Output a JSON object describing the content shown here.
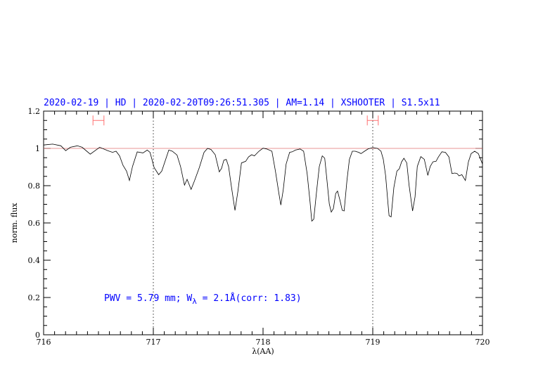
{
  "title": "2020-02-19 | HD | 2020-02-20T09:26:51.305 | AM=1.14 | XSHOOTER | S1.5x11",
  "chart_data": {
    "type": "line",
    "title": "2020-02-19 | HD | 2020-02-20T09:26:51.305 | AM=1.14 | XSHOOTER | S1.5x11",
    "xlabel": "λ(AA)",
    "ylabel": "norm. flux",
    "xlim": [
      716,
      720
    ],
    "ylim": [
      0,
      1.2
    ],
    "xticks": [
      716,
      717,
      718,
      719,
      720
    ],
    "xtick_labels": [
      "716",
      "717",
      "718",
      "719",
      "720"
    ],
    "yticks": [
      0,
      0.2,
      0.4,
      0.6,
      0.8,
      1,
      1.2
    ],
    "ytick_labels": [
      "0",
      "0.2",
      "0.4",
      "0.6",
      "0.8",
      "1",
      "1.2"
    ],
    "grid": false,
    "reference_line": {
      "y": 1,
      "color": "#e07070"
    },
    "vertical_dotted_lines": [
      717,
      719
    ],
    "range_markers": [
      {
        "center": 716.5,
        "halfwidth": 0.05,
        "y": 1.15,
        "color": "#ff7070"
      },
      {
        "center": 719.0,
        "halfwidth": 0.05,
        "y": 1.15,
        "color": "#ff7070"
      }
    ],
    "annotation": {
      "prefix": "PWV = 5.79 mm; W",
      "subscript": "λ",
      "suffix": " = 2.1Å(corr: 1.83)",
      "x": 716.55,
      "y": 0.2,
      "color": "#0000ff"
    },
    "series": [
      {
        "color": "#000000",
        "x": [
          716.0,
          716.03,
          716.083,
          716.158,
          716.201,
          716.244,
          716.308,
          716.351,
          716.425,
          716.511,
          716.585,
          716.628,
          716.66,
          716.692,
          716.724,
          716.756,
          716.782,
          716.81,
          716.853,
          716.906,
          716.944,
          716.97,
          717.008,
          717.049,
          717.077,
          717.141,
          717.173,
          717.216,
          717.248,
          717.284,
          717.308,
          717.344,
          717.376,
          717.419,
          717.462,
          717.494,
          717.526,
          717.564,
          717.601,
          717.622,
          717.643,
          717.665,
          717.686,
          717.713,
          717.744,
          717.771,
          717.803,
          717.842,
          717.867,
          717.896,
          717.921,
          717.963,
          718.0,
          718.034,
          718.081,
          718.113,
          718.146,
          718.162,
          718.184,
          718.21,
          718.242,
          718.267,
          718.295,
          718.338,
          718.37,
          718.402,
          718.428,
          718.444,
          718.462,
          718.487,
          718.513,
          718.54,
          718.562,
          718.583,
          718.604,
          718.622,
          718.641,
          718.662,
          718.679,
          718.701,
          718.722,
          718.739,
          718.765,
          718.787,
          718.814,
          718.84,
          718.872,
          718.893,
          718.925,
          718.957,
          719.0,
          719.043,
          719.075,
          719.096,
          719.117,
          719.139,
          719.149,
          719.167,
          719.192,
          719.22,
          719.242,
          719.263,
          719.284,
          719.31,
          719.331,
          719.363,
          719.385,
          719.406,
          719.438,
          719.47,
          719.502,
          719.524,
          719.549,
          719.577,
          719.598,
          719.63,
          719.662,
          719.694,
          719.722,
          719.748,
          719.769,
          719.786,
          719.812,
          719.844,
          719.872,
          719.897,
          719.929,
          719.962,
          720.0
        ],
        "y": [
          1.018,
          1.02,
          1.023,
          1.014,
          0.988,
          1.006,
          1.014,
          1.006,
          0.969,
          1.006,
          0.988,
          0.979,
          0.985,
          0.96,
          0.909,
          0.878,
          0.828,
          0.903,
          0.981,
          0.976,
          0.991,
          0.979,
          0.897,
          0.859,
          0.878,
          0.991,
          0.985,
          0.964,
          0.903,
          0.803,
          0.834,
          0.78,
          0.828,
          0.897,
          0.979,
          1.0,
          0.994,
          0.966,
          0.874,
          0.893,
          0.937,
          0.941,
          0.903,
          0.79,
          0.667,
          0.771,
          0.922,
          0.931,
          0.954,
          0.966,
          0.96,
          0.985,
          1.001,
          0.997,
          0.985,
          0.878,
          0.752,
          0.696,
          0.777,
          0.916,
          0.979,
          0.982,
          0.991,
          0.997,
          0.985,
          0.865,
          0.714,
          0.61,
          0.62,
          0.765,
          0.903,
          0.96,
          0.947,
          0.828,
          0.702,
          0.658,
          0.677,
          0.758,
          0.771,
          0.721,
          0.668,
          0.664,
          0.828,
          0.941,
          0.985,
          0.985,
          0.979,
          0.972,
          0.985,
          0.997,
          1.004,
          1.0,
          0.985,
          0.941,
          0.853,
          0.702,
          0.639,
          0.633,
          0.79,
          0.878,
          0.891,
          0.928,
          0.947,
          0.922,
          0.803,
          0.664,
          0.74,
          0.903,
          0.956,
          0.941,
          0.855,
          0.903,
          0.928,
          0.931,
          0.954,
          0.982,
          0.979,
          0.954,
          0.865,
          0.868,
          0.865,
          0.853,
          0.859,
          0.828,
          0.928,
          0.972,
          0.985,
          0.972,
          0.916
        ]
      }
    ]
  }
}
